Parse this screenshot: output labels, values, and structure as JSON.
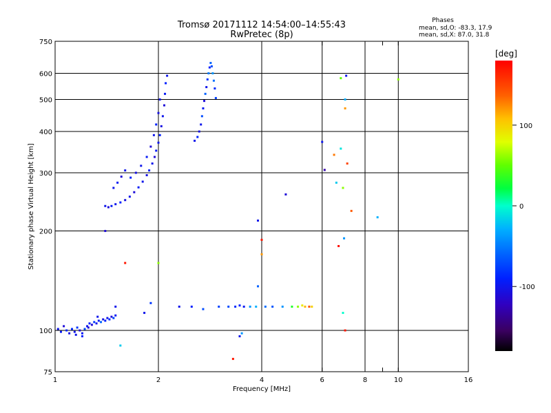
{
  "chart_data": {
    "type": "scatter",
    "title": "Tromsø 20171112 14:54:00–14:55:43",
    "subtitle": "RwPretec (8p)",
    "phase_box": {
      "header": "Phases",
      "line1": "mean, sd,O: -83.3, 17.9",
      "line2": "mean, sd,X:  87.0, 31.8"
    },
    "xlabel": "Frequency [MHz]",
    "ylabel": "Stationary phase Virtual Height [km]",
    "x_scale": "log",
    "y_scale": "log",
    "xlim": [
      1,
      16
    ],
    "ylim": [
      75,
      750
    ],
    "x_ticks": [
      {
        "value": 1,
        "label": "1"
      },
      {
        "value": 2,
        "label": "2"
      },
      {
        "value": 4,
        "label": "4"
      },
      {
        "value": 6,
        "label": "6"
      },
      {
        "value": 8,
        "label": "8"
      },
      {
        "value": 9,
        "label": ""
      },
      {
        "value": 10,
        "label": "10"
      },
      {
        "value": 16,
        "label": "16"
      }
    ],
    "x_grid": [
      2,
      4,
      6,
      8,
      10
    ],
    "y_ticks": [
      {
        "value": 75,
        "label": "75"
      },
      {
        "value": 100,
        "label": "100"
      },
      {
        "value": 200,
        "label": "200"
      },
      {
        "value": 300,
        "label": "300"
      },
      {
        "value": 400,
        "label": "400"
      },
      {
        "value": 500,
        "label": "500"
      },
      {
        "value": 600,
        "label": "600"
      },
      {
        "value": 750,
        "label": "750"
      }
    ],
    "y_grid": [
      100,
      200,
      300,
      400,
      500,
      600
    ],
    "colorbar": {
      "label": "[deg]",
      "range": [
        -180,
        180
      ],
      "ticks": [
        {
          "value": 100,
          "label": "100"
        },
        {
          "value": 0,
          "label": "0"
        },
        {
          "value": -100,
          "label": "-100"
        }
      ]
    },
    "series": [
      {
        "id": "E-layer-trace",
        "points": [
          [
            1.02,
            101,
            -100
          ],
          [
            1.04,
            99,
            -95
          ],
          [
            1.06,
            103,
            -110
          ],
          [
            1.08,
            100,
            -90
          ],
          [
            1.1,
            98,
            -105
          ],
          [
            1.12,
            101,
            -85
          ],
          [
            1.14,
            99,
            -100
          ],
          [
            1.16,
            102,
            -80
          ],
          [
            1.18,
            100,
            -110
          ],
          [
            1.2,
            98,
            -95
          ],
          [
            1.22,
            101,
            -70
          ],
          [
            1.24,
            103,
            -100
          ],
          [
            1.26,
            105,
            -90
          ],
          [
            1.28,
            104,
            -110
          ],
          [
            1.3,
            106,
            -80
          ],
          [
            1.32,
            105,
            -100
          ],
          [
            1.34,
            107,
            -95
          ],
          [
            1.36,
            106,
            -60
          ],
          [
            1.38,
            108,
            -105
          ],
          [
            1.4,
            107,
            -90
          ],
          [
            1.42,
            109,
            -100
          ],
          [
            1.44,
            108,
            -85
          ],
          [
            1.46,
            110,
            -110
          ],
          [
            1.48,
            109,
            -75
          ],
          [
            1.5,
            111,
            -95
          ],
          [
            1.15,
            97,
            -100
          ],
          [
            1.2,
            96,
            -90
          ],
          [
            1.25,
            102,
            -110
          ],
          [
            1.33,
            110,
            -100
          ],
          [
            1.5,
            118,
            -100
          ]
        ]
      },
      {
        "id": "F1-lower-trace",
        "points": [
          [
            1.4,
            238,
            -100
          ],
          [
            1.43,
            236,
            -110
          ],
          [
            1.46,
            238,
            -95
          ],
          [
            1.5,
            241,
            -100
          ],
          [
            1.55,
            244,
            -90
          ],
          [
            1.6,
            248,
            -105
          ],
          [
            1.65,
            254,
            -100
          ],
          [
            1.7,
            262,
            -110
          ],
          [
            1.75,
            271,
            -95
          ],
          [
            1.8,
            282,
            -100
          ],
          [
            1.85,
            295,
            -105
          ],
          [
            1.88,
            305,
            -90
          ],
          [
            1.92,
            320,
            -100
          ],
          [
            1.95,
            335,
            -110
          ],
          [
            1.97,
            350,
            -95
          ],
          [
            2.0,
            370,
            -100
          ],
          [
            2.02,
            390,
            -90
          ],
          [
            2.04,
            415,
            -105
          ],
          [
            2.06,
            445,
            -100
          ],
          [
            2.08,
            480,
            -110
          ],
          [
            2.09,
            520,
            -95
          ],
          [
            2.1,
            560,
            -90
          ],
          [
            2.12,
            590,
            -100
          ]
        ]
      },
      {
        "id": "F1-upper-trace",
        "points": [
          [
            1.48,
            270,
            -100
          ],
          [
            1.52,
            280,
            -95
          ],
          [
            1.56,
            292,
            -110
          ],
          [
            1.6,
            305,
            -100
          ],
          [
            1.66,
            290,
            -90
          ],
          [
            1.72,
            300,
            -105
          ],
          [
            1.78,
            315,
            -100
          ],
          [
            1.85,
            335,
            -95
          ],
          [
            1.9,
            360,
            -110
          ],
          [
            1.94,
            390,
            -100
          ],
          [
            1.97,
            420,
            -90
          ],
          [
            2.0,
            455,
            -105
          ],
          [
            2.02,
            500,
            -100
          ]
        ]
      },
      {
        "id": "F2-trace",
        "points": [
          [
            2.55,
            375,
            -100
          ],
          [
            2.6,
            385,
            -90
          ],
          [
            2.63,
            400,
            -105
          ],
          [
            2.66,
            420,
            -100
          ],
          [
            2.68,
            445,
            -70
          ],
          [
            2.7,
            470,
            -95
          ],
          [
            2.72,
            495,
            -110
          ],
          [
            2.74,
            520,
            -60
          ],
          [
            2.76,
            545,
            -100
          ],
          [
            2.78,
            575,
            -80
          ],
          [
            2.8,
            600,
            -50
          ],
          [
            2.82,
            625,
            -90
          ],
          [
            2.84,
            645,
            -60
          ],
          [
            2.86,
            630,
            -70
          ],
          [
            2.88,
            600,
            -40
          ],
          [
            2.9,
            570,
            -55
          ],
          [
            2.92,
            540,
            -85
          ],
          [
            2.94,
            505,
            -75
          ]
        ]
      },
      {
        "id": "scattered-echoes",
        "points": [
          [
            2.3,
            118,
            -100
          ],
          [
            2.5,
            118,
            -90
          ],
          [
            2.7,
            116,
            -70
          ],
          [
            3.0,
            118,
            -75
          ],
          [
            3.2,
            118,
            -70
          ],
          [
            3.35,
            118,
            -85
          ],
          [
            3.45,
            119,
            -90
          ],
          [
            3.55,
            118,
            -95
          ],
          [
            3.7,
            118,
            -40
          ],
          [
            3.85,
            118,
            -30
          ],
          [
            4.1,
            118,
            -55
          ],
          [
            4.3,
            118,
            -65
          ],
          [
            4.6,
            118,
            -40
          ],
          [
            4.9,
            118,
            30
          ],
          [
            5.1,
            118,
            60
          ],
          [
            5.25,
            119,
            90
          ],
          [
            5.35,
            118,
            110
          ],
          [
            5.5,
            118,
            140
          ],
          [
            5.6,
            118,
            100
          ],
          [
            3.9,
            215,
            -100
          ],
          [
            4.0,
            188,
            170
          ],
          [
            4.7,
            258,
            -110
          ],
          [
            6.0,
            372,
            -100
          ],
          [
            6.1,
            306,
            -130
          ],
          [
            6.5,
            340,
            130
          ],
          [
            6.8,
            355,
            -10
          ],
          [
            7.0,
            470,
            120
          ],
          [
            7.1,
            320,
            150
          ],
          [
            6.6,
            280,
            -20
          ],
          [
            6.9,
            270,
            60
          ],
          [
            7.3,
            230,
            140
          ],
          [
            6.7,
            180,
            175
          ],
          [
            6.95,
            190,
            -40
          ],
          [
            6.9,
            113,
            0
          ],
          [
            7.0,
            100,
            170
          ],
          [
            8.7,
            220,
            -30
          ],
          [
            10.0,
            575,
            60
          ],
          [
            2.0,
            160,
            60
          ],
          [
            1.6,
            160,
            170
          ],
          [
            3.3,
            82,
            170
          ],
          [
            1.4,
            200,
            -110
          ],
          [
            3.9,
            136,
            -60
          ],
          [
            7.05,
            590,
            -100
          ],
          [
            7.0,
            500,
            -30
          ],
          [
            6.8,
            580,
            50
          ],
          [
            1.55,
            90,
            -20
          ],
          [
            3.5,
            98,
            -40
          ],
          [
            3.45,
            96,
            -100
          ],
          [
            1.9,
            121,
            -80
          ],
          [
            1.82,
            113,
            -100
          ],
          [
            4.0,
            170,
            120
          ]
        ]
      }
    ]
  }
}
